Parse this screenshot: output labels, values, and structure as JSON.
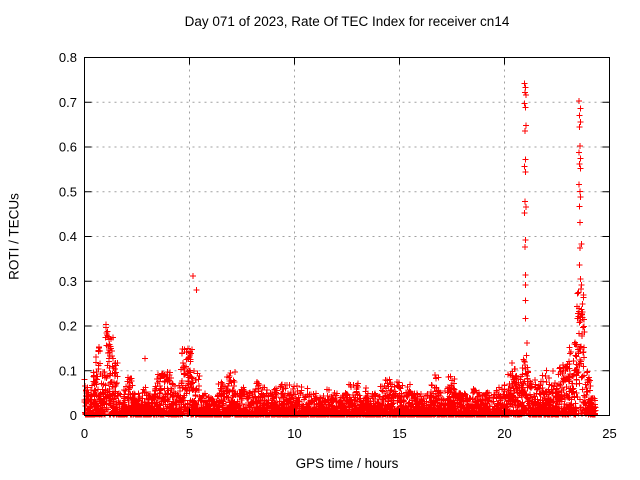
{
  "chart_data": {
    "type": "scatter",
    "title": "Day 071 of 2023, Rate Of TEC Index for receiver cn14",
    "xlabel": "GPS time / hours",
    "ylabel": "ROTI / TECUs",
    "xlim": [
      0,
      25
    ],
    "ylim": [
      0,
      0.8
    ],
    "xticks": [
      0,
      5,
      10,
      15,
      20,
      25
    ],
    "yticks": [
      0,
      0.1,
      0.2,
      0.3,
      0.4,
      0.5,
      0.6,
      0.7,
      0.8
    ],
    "grid": "dotted",
    "legend": "none",
    "marker": "plus",
    "marker_color": "#ff0000",
    "grid_color": "#a0a0a0",
    "axis_color": "#000000",
    "background": "#ffffff",
    "series_note": "dense 30s-rate ROTI noise band 0-0.05 TECU all day; envelope = [t_start_h, t_end_h, max_roti, fill_exponent] describing max values per interval; points = isolated high outliers [t_h, roti]",
    "envelope": [
      [
        0.0,
        0.1,
        0.09,
        2.0
      ],
      [
        0.1,
        0.4,
        0.075,
        3.0
      ],
      [
        0.4,
        0.55,
        0.1,
        3.0
      ],
      [
        0.55,
        0.8,
        0.155,
        2.2
      ],
      [
        0.8,
        1.02,
        0.1,
        2.5
      ],
      [
        1.02,
        1.18,
        0.21,
        1.3
      ],
      [
        1.18,
        1.38,
        0.19,
        1.3
      ],
      [
        1.38,
        1.6,
        0.12,
        2.0
      ],
      [
        1.6,
        1.9,
        0.06,
        3.0
      ],
      [
        1.9,
        2.3,
        0.085,
        2.5
      ],
      [
        2.3,
        2.6,
        0.05,
        3.0
      ],
      [
        2.6,
        3.05,
        0.062,
        3.0
      ],
      [
        3.05,
        3.35,
        0.05,
        3.0
      ],
      [
        3.35,
        3.75,
        0.1,
        2.2
      ],
      [
        3.75,
        4.2,
        0.098,
        2.2
      ],
      [
        4.2,
        4.6,
        0.07,
        3.0
      ],
      [
        4.6,
        5.1,
        0.15,
        1.6
      ],
      [
        5.1,
        5.5,
        0.1,
        2.2
      ],
      [
        5.5,
        6.4,
        0.05,
        3.0
      ],
      [
        6.4,
        6.8,
        0.075,
        2.5
      ],
      [
        6.8,
        7.2,
        0.1,
        2.2
      ],
      [
        7.2,
        7.6,
        0.065,
        3.0
      ],
      [
        7.6,
        8.2,
        0.055,
        3.0
      ],
      [
        8.2,
        8.6,
        0.078,
        2.5
      ],
      [
        8.6,
        9.3,
        0.06,
        3.0
      ],
      [
        9.3,
        9.8,
        0.07,
        3.0
      ],
      [
        9.8,
        10.7,
        0.066,
        3.0
      ],
      [
        10.7,
        11.3,
        0.05,
        3.0
      ],
      [
        11.3,
        11.7,
        0.063,
        3.0
      ],
      [
        11.7,
        12.5,
        0.052,
        3.0
      ],
      [
        12.5,
        13.4,
        0.072,
        3.0
      ],
      [
        13.4,
        14.1,
        0.05,
        3.0
      ],
      [
        14.1,
        14.6,
        0.085,
        2.5
      ],
      [
        14.6,
        15.1,
        0.075,
        2.5
      ],
      [
        15.1,
        15.6,
        0.07,
        3.0
      ],
      [
        15.6,
        16.5,
        0.05,
        3.0
      ],
      [
        16.5,
        16.9,
        0.088,
        2.5
      ],
      [
        16.9,
        17.3,
        0.055,
        3.0
      ],
      [
        17.3,
        17.7,
        0.088,
        2.5
      ],
      [
        17.7,
        18.5,
        0.05,
        3.0
      ],
      [
        18.5,
        18.9,
        0.06,
        3.0
      ],
      [
        18.9,
        19.5,
        0.055,
        3.0
      ],
      [
        19.5,
        19.9,
        0.065,
        3.0
      ],
      [
        19.9,
        20.2,
        0.08,
        2.5
      ],
      [
        20.2,
        20.5,
        0.12,
        1.5
      ],
      [
        20.5,
        20.85,
        0.09,
        2.5
      ],
      [
        20.85,
        21.15,
        0.135,
        1.4
      ],
      [
        21.15,
        21.6,
        0.08,
        2.5
      ],
      [
        21.6,
        22.1,
        0.09,
        2.5
      ],
      [
        22.1,
        22.6,
        0.075,
        2.5
      ],
      [
        22.6,
        23.1,
        0.12,
        1.8
      ],
      [
        23.1,
        23.45,
        0.17,
        1.5
      ],
      [
        23.45,
        23.85,
        0.285,
        1.2
      ],
      [
        23.85,
        24.1,
        0.1,
        2.0
      ],
      [
        24.1,
        24.35,
        0.045,
        2.5
      ]
    ],
    "points": [
      [
        2.88,
        0.127
      ],
      [
        2.9,
        0.063
      ],
      [
        2.93,
        0.052
      ],
      [
        5.17,
        0.312
      ],
      [
        5.33,
        0.281
      ],
      [
        16.68,
        0.091
      ],
      [
        16.73,
        0.083
      ],
      [
        17.42,
        0.087
      ],
      [
        17.5,
        0.078
      ],
      [
        22.0,
        0.101
      ],
      [
        22.32,
        0.099
      ],
      [
        20.95,
        0.742
      ],
      [
        21.0,
        0.733
      ],
      [
        20.97,
        0.722
      ],
      [
        21.02,
        0.716
      ],
      [
        20.96,
        0.697
      ],
      [
        21.0,
        0.688
      ],
      [
        21.03,
        0.648
      ],
      [
        20.98,
        0.636
      ],
      [
        21.0,
        0.572
      ],
      [
        20.95,
        0.556
      ],
      [
        21.01,
        0.544
      ],
      [
        20.98,
        0.478
      ],
      [
        21.03,
        0.466
      ],
      [
        20.96,
        0.452
      ],
      [
        21.0,
        0.392
      ],
      [
        20.98,
        0.377
      ],
      [
        21.0,
        0.314
      ],
      [
        20.99,
        0.292
      ],
      [
        21.01,
        0.257
      ],
      [
        21.0,
        0.217
      ],
      [
        21.06,
        0.162
      ],
      [
        23.55,
        0.703
      ],
      [
        23.61,
        0.686
      ],
      [
        23.57,
        0.67
      ],
      [
        23.63,
        0.656
      ],
      [
        23.58,
        0.645
      ],
      [
        23.6,
        0.602
      ],
      [
        23.55,
        0.588
      ],
      [
        23.62,
        0.574
      ],
      [
        23.58,
        0.562
      ],
      [
        23.61,
        0.552
      ],
      [
        23.55,
        0.516
      ],
      [
        23.6,
        0.501
      ],
      [
        23.63,
        0.488
      ],
      [
        23.57,
        0.467
      ],
      [
        23.6,
        0.431
      ],
      [
        23.66,
        0.383
      ],
      [
        23.59,
        0.374
      ],
      [
        23.56,
        0.336
      ],
      [
        23.61,
        0.305
      ],
      [
        23.66,
        0.292
      ],
      [
        23.94,
        0.096
      ]
    ]
  }
}
